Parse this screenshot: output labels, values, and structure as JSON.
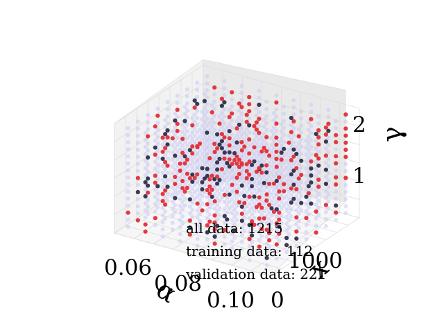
{
  "chart_data": {
    "type": "scatter",
    "projection": "3d",
    "title": "",
    "axes": {
      "x": {
        "label": "α",
        "ticks": [
          0.06,
          0.08,
          0.1
        ],
        "tick_labels": [
          "0.06",
          "0.08",
          "0.10"
        ],
        "range": [
          0.05,
          0.11
        ]
      },
      "y": {
        "label": "x",
        "ticks": [
          0,
          1000
        ],
        "tick_labels": [
          "0",
          "1000"
        ],
        "range": [
          0,
          1100
        ]
      },
      "z": {
        "label": "γ",
        "ticks": [
          1,
          2
        ],
        "tick_labels": [
          "1",
          "2"
        ],
        "range": [
          0.4,
          2.3
        ]
      }
    },
    "grid": true,
    "grid_levels": [
      9,
      9,
      15
    ],
    "series": [
      {
        "role": "all",
        "color": "#c8c8f5",
        "count": 1215
      },
      {
        "role": "training",
        "color": "#1c1c3c",
        "count": 112
      },
      {
        "role": "validation",
        "color": "#e0303a",
        "count": 221
      }
    ],
    "annotations": [
      "all data: 1215",
      "training data: 112",
      "validation data: 221"
    ]
  }
}
